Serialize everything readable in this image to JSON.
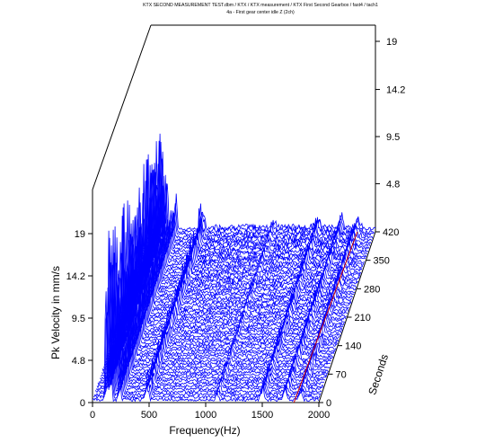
{
  "chart_data": {
    "type": "waterfall-3d",
    "title_lines": [
      "KTX SECOND MEASUREMENT TEST.dbm / KTX / KTX measurement / KTX First Second Gearbox / fast4 / tach1",
      "4a - First gear center idle Z (2ch)"
    ],
    "xlabel": "Frequency(Hz)",
    "ylabel": "Pk Velocity in mm/s",
    "zlabel": "Seconds",
    "x_ticks": [
      "0",
      "500",
      "1000",
      "1500",
      "2000"
    ],
    "y_ticks": [
      "0",
      "4.8",
      "9.5",
      "14.2",
      "19"
    ],
    "z_ticks": [
      "0",
      "70",
      "140",
      "210",
      "280",
      "350",
      "420"
    ],
    "back_y_ticks": [
      "4.8",
      "9.5",
      "14.2",
      "19"
    ],
    "xlim": [
      0,
      2000
    ],
    "ylim": [
      0,
      19
    ],
    "zlim": [
      0,
      420
    ],
    "trace_count": 64,
    "peaks": [
      {
        "frequency": 120,
        "velocity": 18.5
      },
      {
        "frequency": 160,
        "velocity": 12.0
      },
      {
        "frequency": 240,
        "velocity": 7.0
      },
      {
        "frequency": 480,
        "velocity": 4.0
      },
      {
        "frequency": 1100,
        "velocity": 1.2
      },
      {
        "frequency": 1500,
        "velocity": 2.6
      },
      {
        "frequency": 1700,
        "velocity": 2.3
      },
      {
        "frequency": 1840,
        "velocity": 2.0
      }
    ],
    "line_color": "#0000ff",
    "order_line_color": "#cc0000"
  }
}
